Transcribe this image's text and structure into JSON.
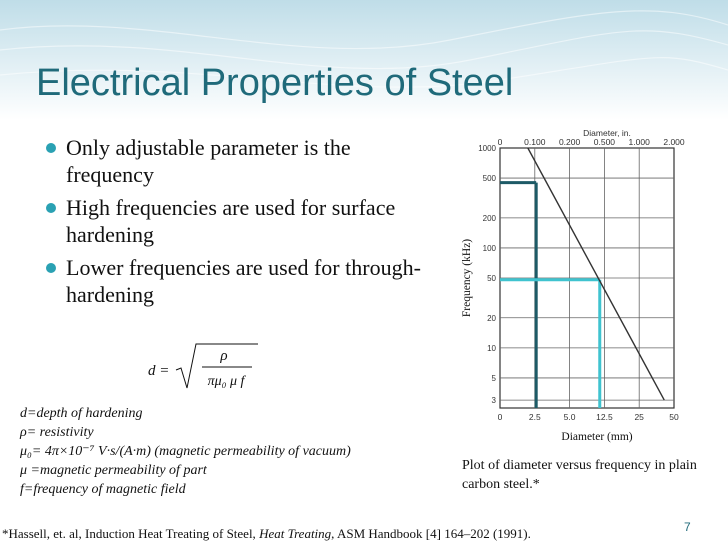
{
  "slide": {
    "title": "Electrical Properties of Steel",
    "bullets": [
      "Only adjustable parameter is the frequency",
      "High frequencies are used for surface hardening",
      "Lower frequencies  are used for through-hardening"
    ],
    "formula": {
      "lhs": "d =",
      "numerator": "ρ",
      "denominator": "πμ₀ μ f"
    },
    "definitions": [
      "d=depth of hardening",
      "ρ= resistivity",
      "μ₀= 4π×10⁻⁷ V·s/(A·m) (magnetic permeability of vacuum)",
      "μ =magnetic permeability of part",
      "f=frequency of magnetic field"
    ],
    "caption": "Plot of diameter versus frequency in plain carbon steel.*",
    "footnote": {
      "prefix": "*Hassell, et. al, Induction Heat Treating of Steel, ",
      "italic": "Heat Treating",
      "suffix": ", ASM Handbook [4] 164–202 (1991)."
    },
    "page_number": "7",
    "colors": {
      "title": "#1f6a7a",
      "bullet": "#2aa1b3",
      "banner": "#cfe6ee",
      "dark_line": "#1d5a66",
      "light_line": "#3fc3cf"
    }
  },
  "chart_data": {
    "type": "line",
    "xlabel": "Diameter (mm)",
    "ylabel": "Frequency (kHz)",
    "top_axis_label": "Diameter, in.",
    "top_ticks": [
      "0",
      "0.100",
      "0.200",
      "0.500",
      "1.000",
      "2.000"
    ],
    "x_ticks": [
      "0",
      "2.5",
      "5.0",
      "12.5",
      "25",
      "50"
    ],
    "y_ticks": [
      "3",
      "5",
      "10",
      "20",
      "50",
      "100",
      "200",
      "500",
      "1000"
    ],
    "series": [
      {
        "x": [
          2.0,
          43.0
        ],
        "y": [
          1000,
          3
        ]
      }
    ],
    "highlights": [
      {
        "x": 2.6,
        "y": 450,
        "color": "dark"
      },
      {
        "x": 11.5,
        "y": 48,
        "color": "light"
      }
    ]
  }
}
